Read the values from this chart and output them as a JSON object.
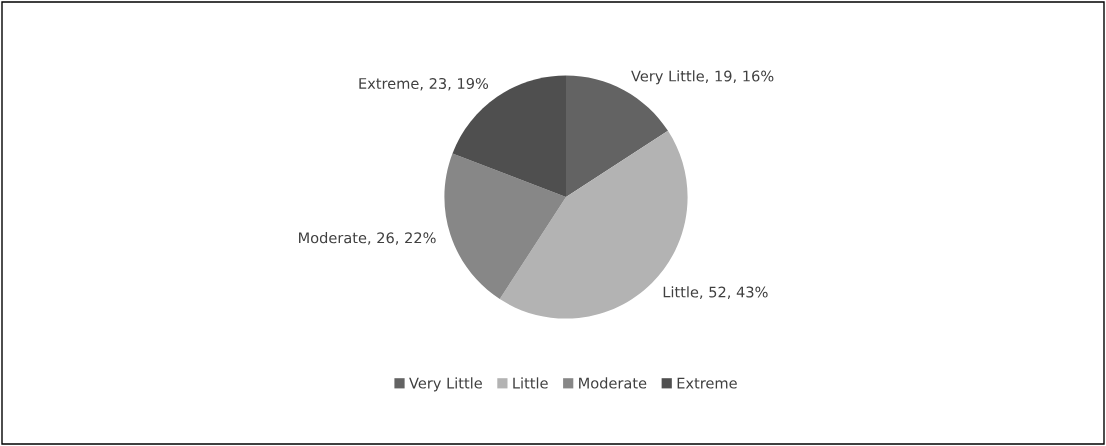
{
  "chart_data": {
    "type": "pie",
    "categories": [
      "Very Little",
      "Little",
      "Moderate",
      "Extreme"
    ],
    "values": [
      19,
      52,
      26,
      23
    ],
    "colors": [
      "#636363",
      "#b3b3b3",
      "#878787",
      "#4f4f4f"
    ],
    "value_labels": [
      "Very Little, 19, 16%",
      "Little, 52, 43%",
      "Moderate, 26, 22%",
      "Extreme, 23, 19%"
    ],
    "legend": "bottom"
  }
}
